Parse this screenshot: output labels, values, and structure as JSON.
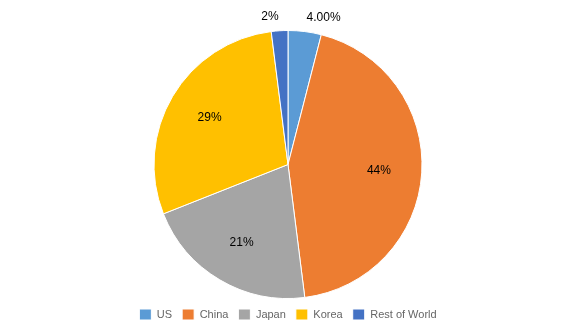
{
  "chart_data": {
    "type": "pie",
    "categories": [
      "US",
      "China",
      "Japan",
      "Korea",
      "Rest of World"
    ],
    "values": [
      4,
      44,
      21,
      29,
      2
    ],
    "value_labels": [
      "4.00%",
      "44%",
      "21%",
      "29%",
      "2%"
    ],
    "colors": [
      "#5B9BD5",
      "#ED7D31",
      "#A5A5A5",
      "#FFC000",
      "#4472C4"
    ],
    "data_labels": true,
    "legend": "bottom"
  }
}
